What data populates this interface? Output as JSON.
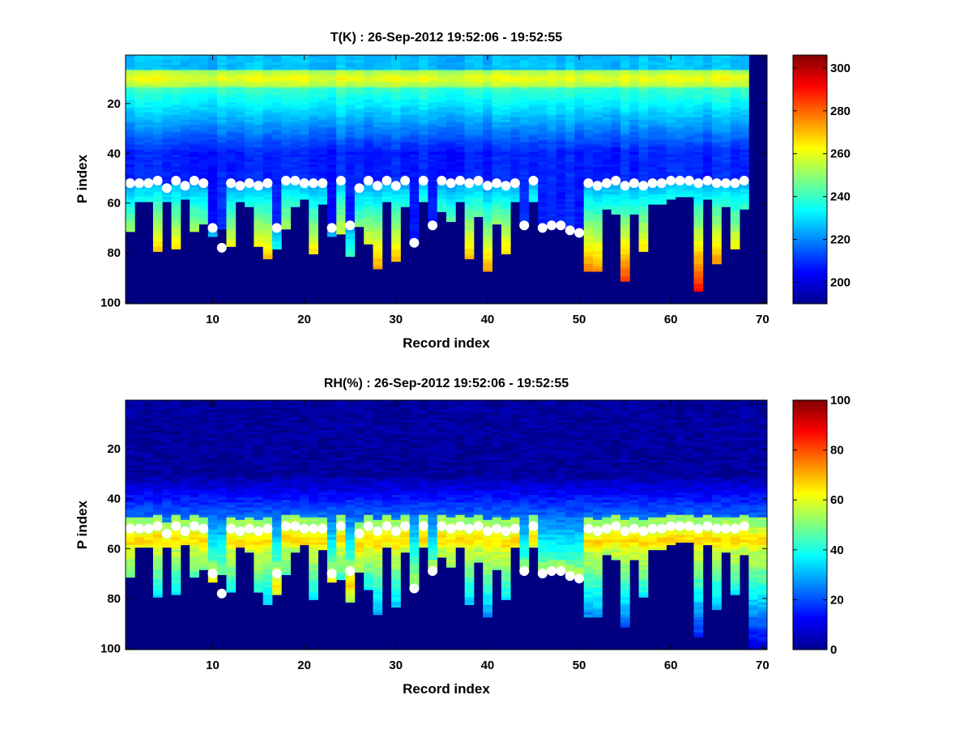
{
  "chart_data": [
    {
      "type": "heatmap",
      "title": "T(K) : 26-Sep-2012 19:52:06 - 19:52:55",
      "xlabel": "Record index",
      "ylabel": "P index",
      "xlim": [
        0.5,
        70.5
      ],
      "ylim": [
        100.5,
        0.5
      ],
      "y_reversed": true,
      "xticks": [
        10,
        20,
        30,
        40,
        50,
        60,
        70
      ],
      "yticks": [
        20,
        40,
        60,
        80,
        100
      ],
      "colormap": "jet",
      "colorbar": {
        "clim": [
          190,
          306
        ],
        "ticks": [
          200,
          220,
          240,
          260,
          280,
          300
        ]
      },
      "n_records": 70,
      "n_levels": 100,
      "record_bottoms": [
        71,
        59,
        59,
        79,
        59,
        78,
        58,
        71,
        68,
        73,
        70,
        77,
        59,
        61,
        77,
        82,
        78,
        70,
        61,
        58,
        80,
        60,
        73,
        72,
        81,
        69,
        76,
        86,
        59,
        83,
        61,
        76,
        59,
        69,
        63,
        67,
        59,
        82,
        65,
        87,
        68,
        80,
        59,
        69,
        59,
        69,
        69,
        69,
        70,
        72,
        87,
        87,
        62,
        64,
        91,
        64,
        79,
        60,
        60,
        58,
        57,
        57,
        95,
        58,
        84,
        61,
        78,
        62,
        100,
        100
      ],
      "tropopause": [
        52,
        52,
        52,
        51,
        54,
        51,
        53,
        51,
        52,
        70,
        78,
        52,
        53,
        52,
        53,
        52,
        70,
        51,
        51,
        52,
        52,
        52,
        70,
        51,
        69,
        54,
        51,
        53,
        51,
        53,
        51,
        76,
        51,
        69,
        51,
        52,
        51,
        52,
        51,
        53,
        52,
        53,
        52,
        69,
        51,
        70,
        69,
        69,
        71,
        72,
        52,
        53,
        52,
        51,
        53,
        52,
        53,
        52,
        52,
        51,
        51,
        51,
        52,
        51,
        52,
        52,
        52,
        51,
        null,
        null
      ],
      "dot_color": "#ffffff"
    },
    {
      "type": "heatmap",
      "title": "RH(%) : 26-Sep-2012 19:52:06 - 19:52:55",
      "xlabel": "Record index",
      "ylabel": "P index",
      "xlim": [
        0.5,
        70.5
      ],
      "ylim": [
        100.5,
        0.5
      ],
      "y_reversed": true,
      "xticks": [
        10,
        20,
        30,
        40,
        50,
        60,
        70
      ],
      "yticks": [
        20,
        40,
        60,
        80,
        100
      ],
      "colormap": "jet",
      "colorbar": {
        "clim": [
          0,
          100
        ],
        "ticks": [
          0,
          20,
          40,
          60,
          80,
          100
        ]
      },
      "n_records": 70,
      "n_levels": 100,
      "record_bottoms": [
        71,
        59,
        59,
        79,
        59,
        78,
        58,
        71,
        68,
        73,
        70,
        77,
        59,
        61,
        77,
        82,
        78,
        70,
        61,
        58,
        80,
        60,
        73,
        72,
        81,
        69,
        76,
        86,
        59,
        83,
        61,
        76,
        59,
        69,
        63,
        67,
        59,
        82,
        65,
        87,
        68,
        80,
        59,
        69,
        59,
        69,
        69,
        69,
        70,
        72,
        87,
        87,
        62,
        64,
        91,
        64,
        79,
        60,
        60,
        58,
        57,
        57,
        95,
        58,
        84,
        61,
        78,
        62,
        100,
        100
      ],
      "tropopause": [
        52,
        52,
        52,
        51,
        54,
        51,
        53,
        51,
        52,
        70,
        78,
        52,
        53,
        52,
        53,
        52,
        70,
        51,
        51,
        52,
        52,
        52,
        70,
        51,
        69,
        54,
        51,
        53,
        51,
        53,
        51,
        76,
        51,
        69,
        51,
        52,
        51,
        52,
        51,
        53,
        52,
        53,
        52,
        69,
        51,
        70,
        69,
        69,
        71,
        72,
        52,
        53,
        52,
        51,
        53,
        52,
        53,
        52,
        52,
        51,
        51,
        51,
        52,
        51,
        52,
        52,
        52,
        51,
        null,
        null
      ],
      "dot_color": "#ffffff"
    }
  ]
}
